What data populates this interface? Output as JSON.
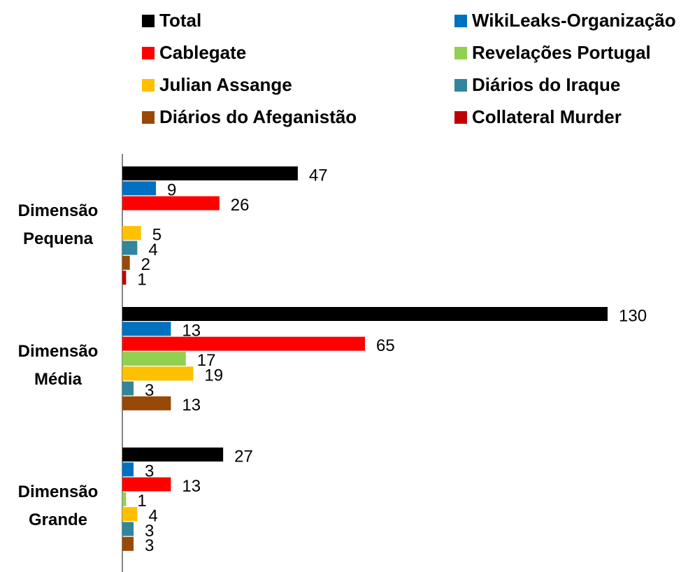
{
  "chart_data": {
    "type": "bar",
    "orientation": "horizontal",
    "categories": [
      "Dimensão Pequena",
      "Dimensão Média",
      "Dimensão Grande"
    ],
    "series": [
      {
        "name": "Total",
        "color": "#000000",
        "values": [
          47,
          130,
          27
        ]
      },
      {
        "name": "WikiLeaks-Organização",
        "color": "#0070c0",
        "values": [
          9,
          13,
          3
        ]
      },
      {
        "name": "Cablegate",
        "color": "#ff0000",
        "values": [
          26,
          65,
          13
        ]
      },
      {
        "name": "Revelações Portugal",
        "color": "#92d050",
        "values": [
          null,
          17,
          1
        ]
      },
      {
        "name": "Julian Assange",
        "color": "#ffc000",
        "values": [
          5,
          19,
          4
        ]
      },
      {
        "name": "Diários do Iraque",
        "color": "#31859c",
        "values": [
          4,
          3,
          3
        ]
      },
      {
        "name": "Diários do Afeganistão",
        "color": "#984807",
        "values": [
          2,
          13,
          3
        ]
      },
      {
        "name": "Collateral Murder",
        "color": "#c00000",
        "values": [
          1,
          null,
          null
        ]
      }
    ],
    "xlim": [
      0,
      130
    ],
    "legend": "top"
  }
}
